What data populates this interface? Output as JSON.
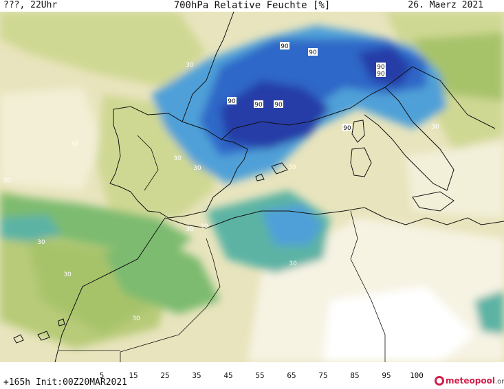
{
  "header": {
    "left": "???, 22Uhr",
    "title": "700hPa Relative Feuchte [%]",
    "date": "26. Maerz 2021"
  },
  "footer": {
    "run_info": "+165h Init:00Z20MAR2021",
    "brand_main": "meteopool",
    "brand_suffix": ".org"
  },
  "colorbar": {
    "tick_labels": [
      "5",
      "15",
      "25",
      "35",
      "45",
      "55",
      "65",
      "75",
      "85",
      "95",
      "100"
    ],
    "colors": [
      "#ffffff",
      "#f8f4e6",
      "#ece6c0",
      "#cfd893",
      "#a7c36b",
      "#7dbb70",
      "#5bb3a4",
      "#4fa0d8",
      "#2f67c8",
      "#253ca7",
      "#2b1d80",
      "#3f0a5e"
    ]
  },
  "map": {
    "region": "Western Mediterranean / Iberia / North Africa",
    "contour_labels": [
      "30",
      "30",
      "30",
      "30",
      "30",
      "30",
      "30",
      "30",
      "30",
      "30",
      "30",
      "30",
      "30",
      "30",
      "90",
      "90",
      "90",
      "90",
      "90",
      "90",
      "90",
      "90"
    ]
  }
}
